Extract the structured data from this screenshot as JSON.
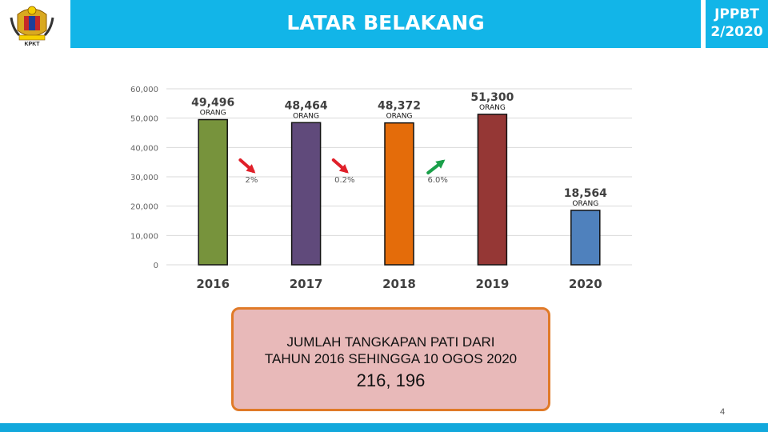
{
  "header": {
    "title": "LATAR BELAKANG",
    "badge_line1": "JPPBT",
    "badge_line2": "2/2020",
    "logo_label": "KPKT",
    "primary_color": "#12b5e8"
  },
  "chart_data": {
    "type": "bar",
    "categories": [
      "2016",
      "2017",
      "2018",
      "2019",
      "2020"
    ],
    "values": [
      49496,
      48464,
      48372,
      51300,
      18564
    ],
    "value_labels": [
      "49,496",
      "48,464",
      "48,372",
      "51,300",
      "18,564"
    ],
    "unit_label": "ORANG",
    "bar_colors": [
      "#77933c",
      "#604a7b",
      "#e46c0a",
      "#953735",
      "#4f81bd"
    ],
    "y_ticks": [
      "0",
      "10,000",
      "20,000",
      "30,000",
      "40,000",
      "50,000",
      "60,000"
    ],
    "ylim": [
      0,
      60000
    ],
    "grid": true,
    "changes": [
      {
        "label": "2%",
        "direction": "down",
        "color": "#e0202a"
      },
      {
        "label": "0.2%",
        "direction": "down",
        "color": "#e0202a"
      },
      {
        "label": "6.0%",
        "direction": "up",
        "color": "#1aa04a"
      }
    ]
  },
  "summary": {
    "text_line1": "JUMLAH TANGKAPAN PATI DARI",
    "text_line2": "TAHUN 2016 SEHINGGA 10 OGOS 2020",
    "total": "216, 196"
  },
  "page_number": "4"
}
